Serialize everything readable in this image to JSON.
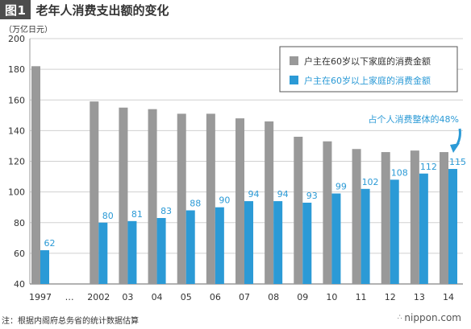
{
  "header": {
    "fig_label": "图1",
    "title": "老年人消费支出额的变化"
  },
  "chart_data": {
    "type": "bar",
    "unit_label": "（万亿日元）",
    "ylim": [
      40,
      200
    ],
    "yticks": [
      40,
      60,
      80,
      100,
      120,
      140,
      160,
      180,
      200
    ],
    "categories": [
      "1997",
      "…",
      "2002",
      "03",
      "04",
      "05",
      "06",
      "07",
      "08",
      "09",
      "10",
      "11",
      "12",
      "13",
      "14"
    ],
    "series": [
      {
        "name": "户主在60岁以下家庭的消费金额",
        "color": "#999999",
        "values": [
          182,
          null,
          159,
          155,
          154,
          151,
          151,
          148,
          146,
          136,
          133,
          128,
          126,
          127,
          126
        ]
      },
      {
        "name": "户主在60岁以上家庭的消费金额",
        "color": "#2b9ad6",
        "values": [
          62,
          null,
          80,
          81,
          83,
          88,
          90,
          94,
          94,
          93,
          99,
          102,
          108,
          112,
          115
        ],
        "labels": [
          "62",
          "",
          "80",
          "81",
          "83",
          "88",
          "90",
          "94",
          "94",
          "93",
          "99",
          "102",
          "108",
          "112",
          "115"
        ]
      }
    ],
    "annotation": {
      "text": "占个人消费整体的48%",
      "target_category": "14"
    },
    "grid": true,
    "legend": "top-right"
  },
  "footer": {
    "note": "注：根据内阁府总务省的统计数据估算",
    "brand": "nippon.com"
  }
}
